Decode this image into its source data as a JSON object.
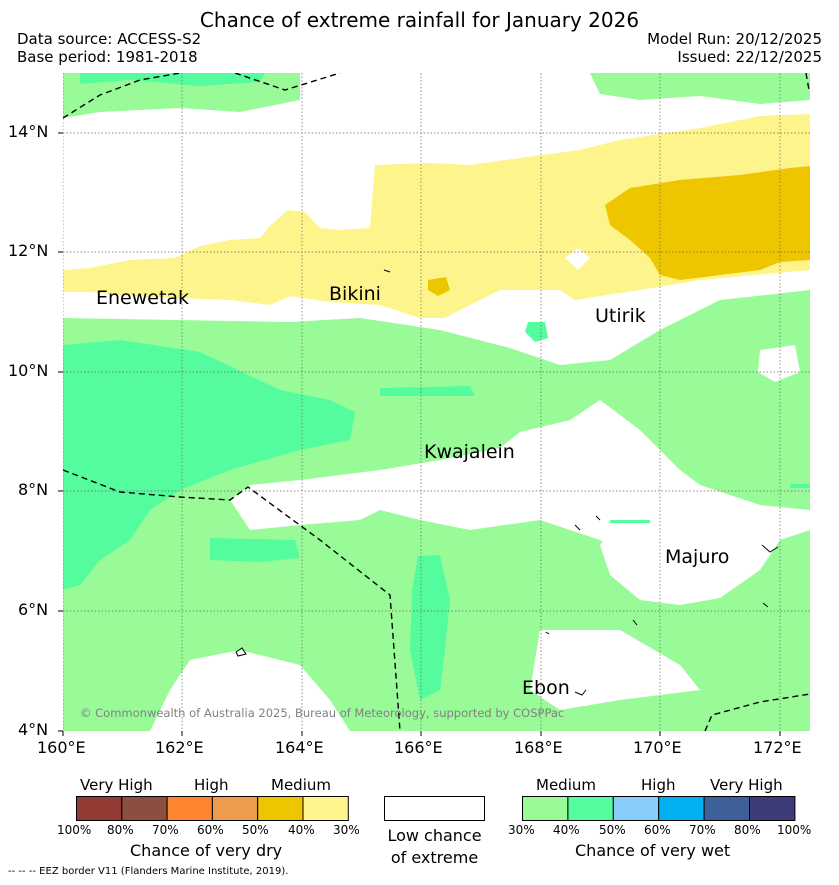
{
  "header": {
    "title": "Chance of extreme rainfall for January 2026",
    "data_source": "Data source: ACCESS-S2",
    "base_period": "Base period: 1981-2018",
    "model_run": "Model Run: 20/12/2025",
    "issued": "Issued: 22/12/2025"
  },
  "map": {
    "latitude_ticks": [
      "14°N",
      "12°N",
      "10°N",
      "8°N",
      "6°N",
      "4°N"
    ],
    "longitude_ticks": [
      "160°E",
      "162°E",
      "164°E",
      "166°E",
      "168°E",
      "170°E",
      "172°E"
    ],
    "places": [
      "Enewetak",
      "Bikini",
      "Utirik",
      "Kwajalein",
      "Majuro",
      "Ebon"
    ],
    "copyright": "© Commonwealth of Australia 2025, Bureau of Meteorology, supported by COSPPac",
    "colors": {
      "dry_40_30": "#fdf48b",
      "dry_50_40": "#eec600",
      "wet_30_40": "#98fb98",
      "wet_40_50": "#54fc9e",
      "low_chance": "#ffffff"
    }
  },
  "legend": {
    "dry": {
      "levels": [
        "Very High",
        "High",
        "Medium"
      ],
      "colors": [
        "#933b32",
        "#8c4e3e",
        "#fd8530",
        "#eb9d4d",
        "#eec600",
        "#fdf48b"
      ],
      "pcts": [
        "100%",
        "80%",
        "70%",
        "60%",
        "50%",
        "40%",
        "30%"
      ],
      "caption": "Chance of very dry"
    },
    "low": {
      "line1": "Low chance",
      "line2": "of extreme"
    },
    "wet": {
      "levels": [
        "Medium",
        "High",
        "Very High"
      ],
      "colors": [
        "#98fb98",
        "#54fc9e",
        "#87cdfa",
        "#00b0f0",
        "#3d609a",
        "#3d3b78"
      ],
      "pcts": [
        "30%",
        "40%",
        "50%",
        "60%",
        "70%",
        "80%",
        "100%"
      ],
      "caption": "Chance of very wet"
    }
  },
  "footer": "--  --  -- EEZ border V11 (Flanders Marine Institute, 2019)."
}
